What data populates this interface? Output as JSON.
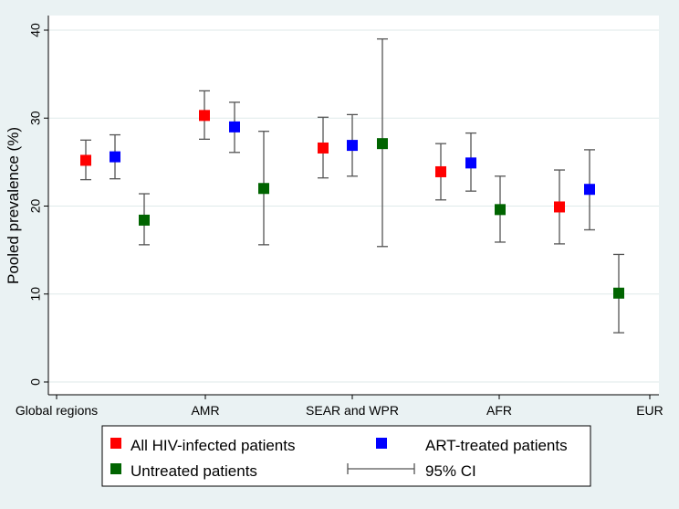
{
  "chart_data": {
    "type": "scatter",
    "subtype": "point-estimate-with-error-bars",
    "title": "",
    "xlabel": "",
    "ylabel": "Pooled prevalence (%)",
    "ylim": [
      0,
      40
    ],
    "yticks": [
      0,
      10,
      20,
      30,
      40
    ],
    "grid": true,
    "categories": [
      "Global regions",
      "AMR",
      "SEAR and WPR",
      "AFR",
      "EUR"
    ],
    "series": [
      {
        "name": "All HIV-infected patients",
        "color": "#ff0000",
        "values": [
          25.2,
          30.3,
          26.6,
          23.9,
          19.9
        ],
        "ci_low": [
          23.0,
          27.6,
          23.2,
          20.7,
          15.7
        ],
        "ci_high": [
          27.5,
          33.1,
          30.1,
          27.1,
          24.1
        ]
      },
      {
        "name": "ART-treated patients",
        "color": "#0000ff",
        "values": [
          25.6,
          29.0,
          26.9,
          24.9,
          21.9
        ],
        "ci_low": [
          23.1,
          26.1,
          23.4,
          21.7,
          17.3
        ],
        "ci_high": [
          28.1,
          31.8,
          30.4,
          28.3,
          26.4
        ]
      },
      {
        "name": "Untreated patients",
        "color": "#006400",
        "values": [
          18.4,
          22.0,
          27.1,
          19.6,
          10.1
        ],
        "ci_low": [
          15.6,
          15.6,
          15.4,
          15.9,
          5.6
        ],
        "ci_high": [
          21.4,
          28.5,
          39.0,
          23.4,
          14.5
        ]
      }
    ],
    "legend": {
      "position": "bottom",
      "ci_label": "95% CI"
    },
    "colors": {
      "background": "#eaf2f3",
      "plot_background": "#ffffff",
      "grid": "#dfeaea",
      "error_bar": "#555555"
    }
  }
}
